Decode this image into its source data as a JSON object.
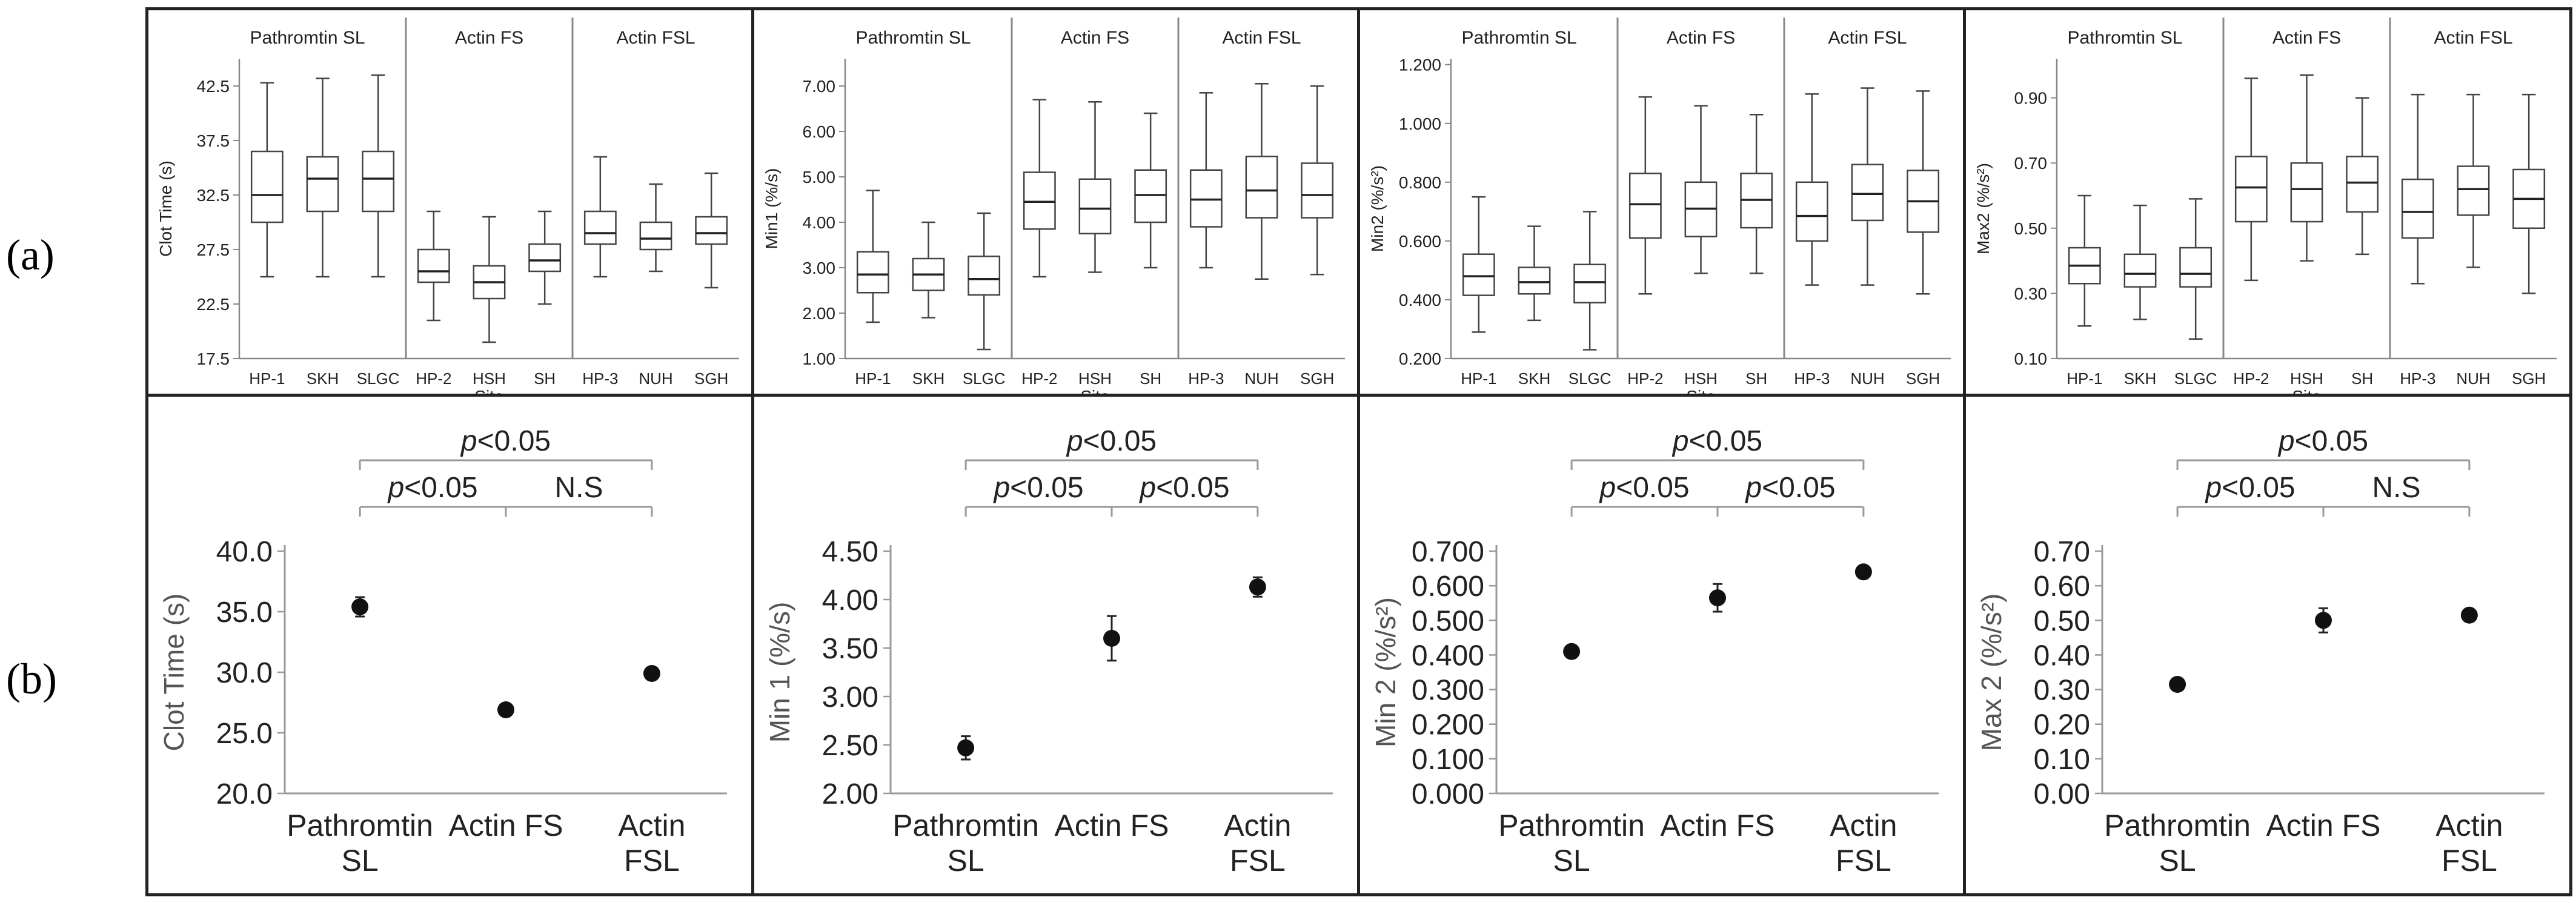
{
  "labels": {
    "a": "(a)",
    "b": "(b)"
  },
  "chart_data": [
    {
      "type": "boxplot",
      "title": "",
      "xlabel": "Site",
      "ylabel": "Clot Time (s)",
      "ylim": [
        17.5,
        45
      ],
      "yticks": [
        "17.5",
        "22.5",
        "27.5",
        "32.5",
        "37.5",
        "42.5"
      ],
      "yticks_values": [
        17.5,
        22.5,
        27.5,
        32.5,
        37.5,
        42.5
      ],
      "groups": [
        "Pathromtin SL",
        "Actin FS",
        "Actin FSL"
      ],
      "categories": [
        "HP-1",
        "SKH",
        "SLGC",
        "HP-2",
        "HSH",
        "SH",
        "HP-3",
        "NUH",
        "SGH"
      ],
      "boxes": [
        {
          "min": 25.0,
          "q1": 30.0,
          "median": 32.5,
          "q3": 36.5,
          "max": 42.8
        },
        {
          "min": 25.0,
          "q1": 31.0,
          "median": 34.0,
          "q3": 36.0,
          "max": 43.2
        },
        {
          "min": 25.0,
          "q1": 31.0,
          "median": 34.0,
          "q3": 36.5,
          "max": 43.5
        },
        {
          "min": 21.0,
          "q1": 24.5,
          "median": 25.5,
          "q3": 27.5,
          "max": 31.0
        },
        {
          "min": 19.0,
          "q1": 23.0,
          "median": 24.5,
          "q3": 26.0,
          "max": 30.5
        },
        {
          "min": 22.5,
          "q1": 25.5,
          "median": 26.5,
          "q3": 28.0,
          "max": 31.0
        },
        {
          "min": 25.0,
          "q1": 28.0,
          "median": 29.0,
          "q3": 31.0,
          "max": 36.0
        },
        {
          "min": 25.5,
          "q1": 27.5,
          "median": 28.5,
          "q3": 30.0,
          "max": 33.5
        },
        {
          "min": 24.0,
          "q1": 28.0,
          "median": 29.0,
          "q3": 30.5,
          "max": 34.5
        }
      ]
    },
    {
      "type": "boxplot",
      "title": "",
      "xlabel": "Site",
      "ylabel": "Min1 (%/s)",
      "ylim": [
        1.0,
        7.6
      ],
      "yticks": [
        "1.00",
        "2.00",
        "3.00",
        "4.00",
        "5.00",
        "6.00",
        "7.00"
      ],
      "yticks_values": [
        1,
        2,
        3,
        4,
        5,
        6,
        7
      ],
      "groups": [
        "Pathromtin SL",
        "Actin FS",
        "Actin FSL"
      ],
      "categories": [
        "HP-1",
        "SKH",
        "SLGC",
        "HP-2",
        "HSH",
        "SH",
        "HP-3",
        "NUH",
        "SGH"
      ],
      "boxes": [
        {
          "min": 1.8,
          "q1": 2.45,
          "median": 2.85,
          "q3": 3.35,
          "max": 4.7
        },
        {
          "min": 1.9,
          "q1": 2.5,
          "median": 2.85,
          "q3": 3.2,
          "max": 4.0
        },
        {
          "min": 1.2,
          "q1": 2.4,
          "median": 2.75,
          "q3": 3.25,
          "max": 4.2
        },
        {
          "min": 2.8,
          "q1": 3.85,
          "median": 4.45,
          "q3": 5.1,
          "max": 6.7
        },
        {
          "min": 2.9,
          "q1": 3.75,
          "median": 4.3,
          "q3": 4.95,
          "max": 6.65
        },
        {
          "min": 3.0,
          "q1": 4.0,
          "median": 4.6,
          "q3": 5.15,
          "max": 6.4
        },
        {
          "min": 3.0,
          "q1": 3.9,
          "median": 4.5,
          "q3": 5.15,
          "max": 6.85
        },
        {
          "min": 2.75,
          "q1": 4.1,
          "median": 4.7,
          "q3": 5.45,
          "max": 7.05
        },
        {
          "min": 2.85,
          "q1": 4.1,
          "median": 4.6,
          "q3": 5.3,
          "max": 7.0
        }
      ]
    },
    {
      "type": "boxplot",
      "title": "",
      "xlabel": "Site",
      "ylabel": "Min2 (%/s²)",
      "ylim": [
        0.2,
        1.22
      ],
      "yticks": [
        "0.200",
        "0.400",
        "0.600",
        "0.800",
        "1.000",
        "1.200"
      ],
      "yticks_values": [
        0.2,
        0.4,
        0.6,
        0.8,
        1.0,
        1.2
      ],
      "groups": [
        "Pathromtin SL",
        "Actin FS",
        "Actin FSL"
      ],
      "categories": [
        "HP-1",
        "SKH",
        "SLGC",
        "HP-2",
        "HSH",
        "SH",
        "HP-3",
        "NUH",
        "SGH"
      ],
      "boxes": [
        {
          "min": 0.29,
          "q1": 0.415,
          "median": 0.48,
          "q3": 0.555,
          "max": 0.75
        },
        {
          "min": 0.33,
          "q1": 0.42,
          "median": 0.46,
          "q3": 0.51,
          "max": 0.65
        },
        {
          "min": 0.23,
          "q1": 0.39,
          "median": 0.46,
          "q3": 0.52,
          "max": 0.7
        },
        {
          "min": 0.42,
          "q1": 0.61,
          "median": 0.725,
          "q3": 0.83,
          "max": 1.09
        },
        {
          "min": 0.49,
          "q1": 0.615,
          "median": 0.71,
          "q3": 0.8,
          "max": 1.06
        },
        {
          "min": 0.49,
          "q1": 0.645,
          "median": 0.74,
          "q3": 0.83,
          "max": 1.03
        },
        {
          "min": 0.45,
          "q1": 0.6,
          "median": 0.685,
          "q3": 0.8,
          "max": 1.1
        },
        {
          "min": 0.45,
          "q1": 0.67,
          "median": 0.76,
          "q3": 0.86,
          "max": 1.12
        },
        {
          "min": 0.42,
          "q1": 0.63,
          "median": 0.735,
          "q3": 0.84,
          "max": 1.11
        }
      ]
    },
    {
      "type": "boxplot",
      "title": "",
      "xlabel": "Site",
      "ylabel": "Max2 (%/s²)",
      "ylim": [
        0.1,
        1.02
      ],
      "yticks": [
        "0.10",
        "0.30",
        "0.50",
        "0.70",
        "0.90"
      ],
      "yticks_values": [
        0.1,
        0.3,
        0.5,
        0.7,
        0.9
      ],
      "groups": [
        "Pathromtin SL",
        "Actin FS",
        "Actin FSL"
      ],
      "categories": [
        "HP-1",
        "SKH",
        "SLGC",
        "HP-2",
        "HSH",
        "SH",
        "HP-3",
        "NUH",
        "SGH"
      ],
      "boxes": [
        {
          "min": 0.2,
          "q1": 0.33,
          "median": 0.385,
          "q3": 0.44,
          "max": 0.6
        },
        {
          "min": 0.22,
          "q1": 0.32,
          "median": 0.36,
          "q3": 0.42,
          "max": 0.57
        },
        {
          "min": 0.16,
          "q1": 0.32,
          "median": 0.36,
          "q3": 0.44,
          "max": 0.59
        },
        {
          "min": 0.34,
          "q1": 0.52,
          "median": 0.625,
          "q3": 0.72,
          "max": 0.96
        },
        {
          "min": 0.4,
          "q1": 0.52,
          "median": 0.62,
          "q3": 0.7,
          "max": 0.97
        },
        {
          "min": 0.42,
          "q1": 0.55,
          "median": 0.64,
          "q3": 0.72,
          "max": 0.9
        },
        {
          "min": 0.33,
          "q1": 0.47,
          "median": 0.55,
          "q3": 0.65,
          "max": 0.91
        },
        {
          "min": 0.38,
          "q1": 0.54,
          "median": 0.62,
          "q3": 0.69,
          "max": 0.91
        },
        {
          "min": 0.3,
          "q1": 0.5,
          "median": 0.59,
          "q3": 0.68,
          "max": 0.91
        }
      ]
    },
    {
      "type": "scatter",
      "title": "",
      "xlabel": "",
      "ylabel": "Clot Time (s)",
      "ylim": [
        20.0,
        40.0
      ],
      "yticks": [
        "20.0",
        "25.0",
        "30.0",
        "35.0",
        "40.0"
      ],
      "yticks_values": [
        20,
        25,
        30,
        35,
        40
      ],
      "categories": [
        [
          "Pathromtin",
          "SL"
        ],
        [
          "Actin FS"
        ],
        [
          "Actin",
          "FSL"
        ]
      ],
      "values": [
        35.4,
        26.9,
        29.9
      ],
      "errors": [
        0.8,
        0.5,
        0.4
      ],
      "significance": [
        {
          "p_prefix": "p",
          "text": "<0.05",
          "from": 0,
          "to": 2,
          "level": 0
        },
        {
          "p_prefix": "p",
          "text": "<0.05",
          "from": 0,
          "to": 1,
          "level": 1
        },
        {
          "p_prefix": "",
          "text": "N.S",
          "from": 1,
          "to": 2,
          "level": 1
        }
      ]
    },
    {
      "type": "scatter",
      "title": "",
      "xlabel": "",
      "ylabel": "Min 1 (%/s)",
      "ylim": [
        2.0,
        4.5
      ],
      "yticks": [
        "2.00",
        "2.50",
        "3.00",
        "3.50",
        "4.00",
        "4.50"
      ],
      "yticks_values": [
        2.0,
        2.5,
        3.0,
        3.5,
        4.0,
        4.5
      ],
      "categories": [
        [
          "Pathromtin",
          "SL"
        ],
        [
          "Actin FS"
        ],
        [
          "Actin",
          "FSL"
        ]
      ],
      "values": [
        2.47,
        3.6,
        4.13
      ],
      "errors": [
        0.12,
        0.23,
        0.1
      ],
      "significance": [
        {
          "p_prefix": "p",
          "text": "<0.05",
          "from": 0,
          "to": 2,
          "level": 0
        },
        {
          "p_prefix": "p",
          "text": "<0.05",
          "from": 0,
          "to": 1,
          "level": 1
        },
        {
          "p_prefix": "p",
          "text": "<0.05",
          "from": 1,
          "to": 2,
          "level": 1
        }
      ]
    },
    {
      "type": "scatter",
      "title": "",
      "xlabel": "",
      "ylabel": "Min 2 (%/s²)",
      "ylim": [
        0.0,
        0.7
      ],
      "yticks": [
        "0.000",
        "0.100",
        "0.200",
        "0.300",
        "0.400",
        "0.500",
        "0.600",
        "0.700"
      ],
      "yticks_values": [
        0,
        0.1,
        0.2,
        0.3,
        0.4,
        0.5,
        0.6,
        0.7
      ],
      "categories": [
        [
          "Pathromtin",
          "SL"
        ],
        [
          "Actin FS"
        ],
        [
          "Actin",
          "FSL"
        ]
      ],
      "values": [
        0.41,
        0.565,
        0.64
      ],
      "errors": [
        0.01,
        0.04,
        0.01
      ],
      "significance": [
        {
          "p_prefix": "p",
          "text": "<0.05",
          "from": 0,
          "to": 2,
          "level": 0
        },
        {
          "p_prefix": "p",
          "text": "<0.05",
          "from": 0,
          "to": 1,
          "level": 1
        },
        {
          "p_prefix": "p",
          "text": "<0.05",
          "from": 1,
          "to": 2,
          "level": 1
        }
      ]
    },
    {
      "type": "scatter",
      "title": "",
      "xlabel": "",
      "ylabel": "Max 2 (%/s²)",
      "ylim": [
        0.0,
        0.7
      ],
      "yticks": [
        "0.00",
        "0.10",
        "0.20",
        "0.30",
        "0.40",
        "0.50",
        "0.60",
        "0.70"
      ],
      "yticks_values": [
        0,
        0.1,
        0.2,
        0.3,
        0.4,
        0.5,
        0.6,
        0.7
      ],
      "categories": [
        [
          "Pathromtin",
          "SL"
        ],
        [
          "Actin FS"
        ],
        [
          "Actin",
          "FSL"
        ]
      ],
      "values": [
        0.315,
        0.5,
        0.515
      ],
      "errors": [
        0.01,
        0.035,
        0.01
      ],
      "significance": [
        {
          "p_prefix": "p",
          "text": "<0.05",
          "from": 0,
          "to": 2,
          "level": 0
        },
        {
          "p_prefix": "p",
          "text": "<0.05",
          "from": 0,
          "to": 1,
          "level": 1
        },
        {
          "p_prefix": "",
          "text": "N.S",
          "from": 1,
          "to": 2,
          "level": 1
        }
      ]
    }
  ]
}
